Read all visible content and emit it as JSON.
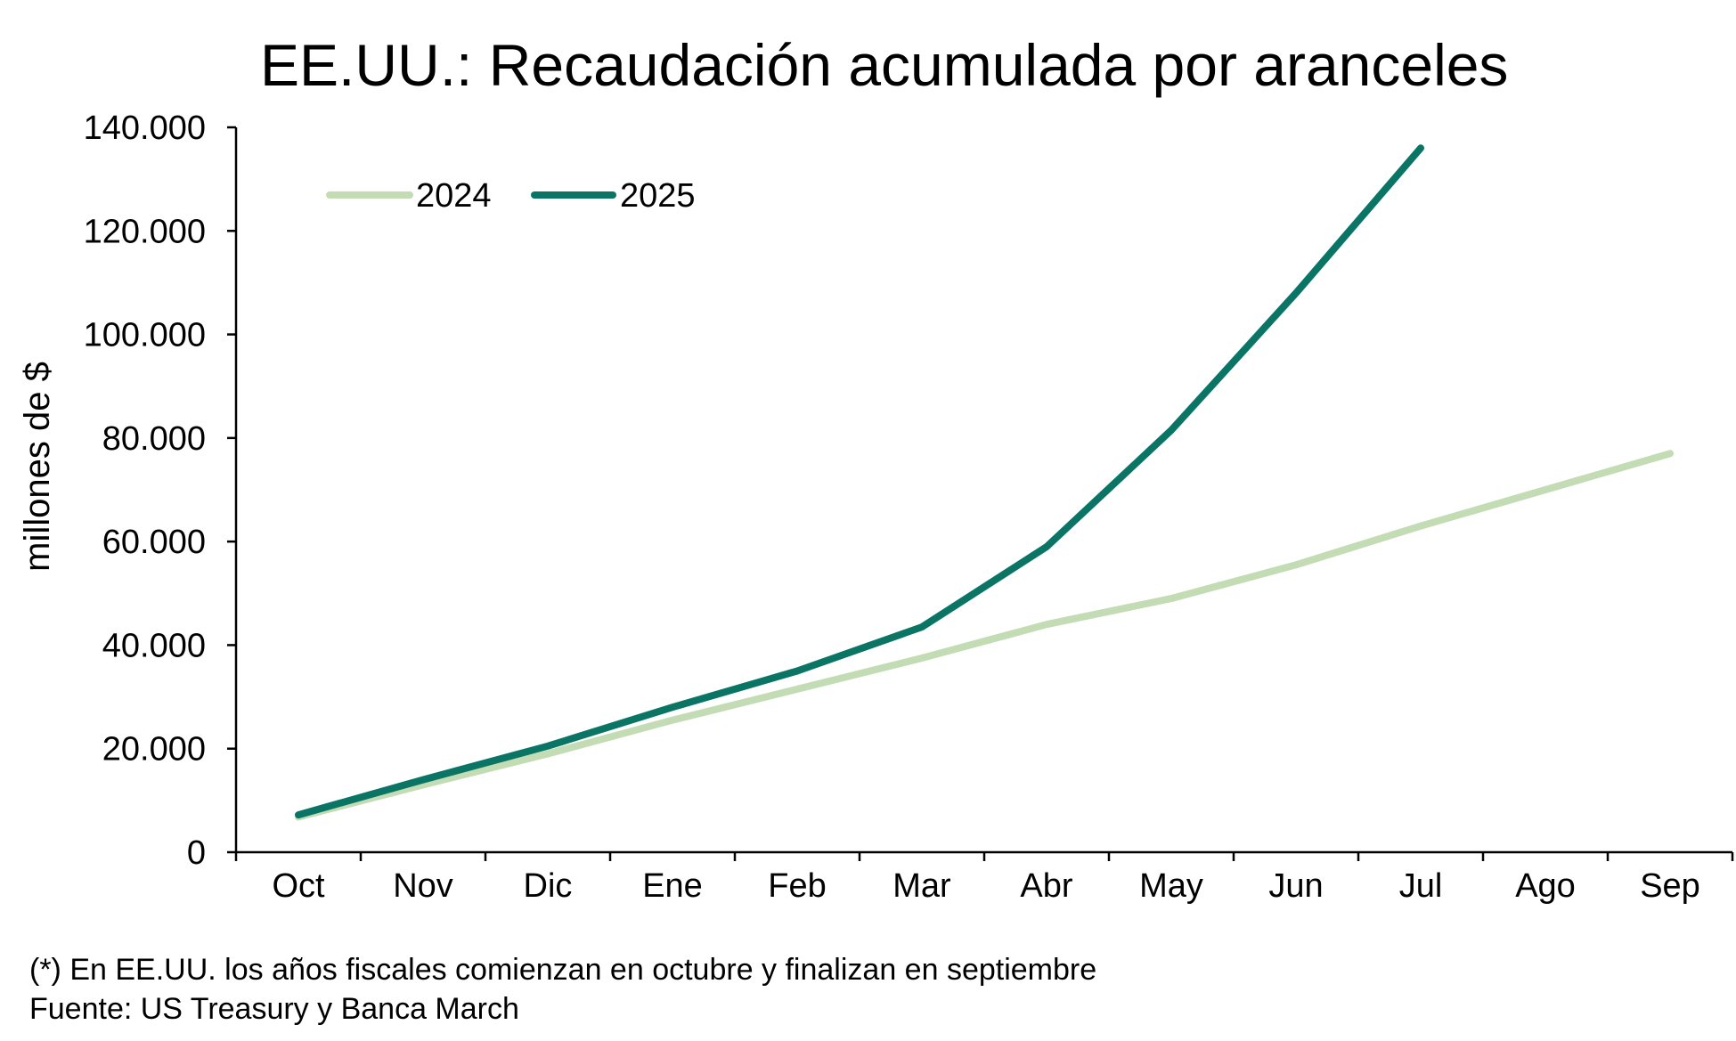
{
  "chart_data": {
    "type": "line",
    "title": "EE.UU.: Recaudación acumulada por aranceles",
    "xlabel": "",
    "ylabel": "millones de $",
    "categories": [
      "Oct",
      "Nov",
      "Dic",
      "Ene",
      "Feb",
      "Mar",
      "Abr",
      "May",
      "Jun",
      "Jul",
      "Ago",
      "Sep"
    ],
    "ylim": [
      0,
      140000
    ],
    "yticks": [
      0,
      20000,
      40000,
      60000,
      80000,
      100000,
      120000,
      140000
    ],
    "ytick_labels": [
      "0",
      "20.000",
      "40.000",
      "60.000",
      "80.000",
      "100.000",
      "120.000",
      "140.000"
    ],
    "grid": false,
    "legend_position": "top-left",
    "series": [
      {
        "name": "2024",
        "color": "#c3dcb4",
        "values": [
          6800,
          13000,
          19000,
          25500,
          31500,
          37500,
          44000,
          49000,
          55500,
          63000,
          70000,
          77000
        ]
      },
      {
        "name": "2025",
        "color": "#0a7565",
        "values": [
          7200,
          14000,
          20500,
          28000,
          35000,
          43500,
          59000,
          81500,
          108000,
          136000,
          null,
          null
        ]
      }
    ],
    "footnotes": [
      "(*) En EE.UU. los años fiscales comienzan en octubre y finalizan en septiembre",
      "Fuente: US Treasury y Banca March"
    ]
  }
}
